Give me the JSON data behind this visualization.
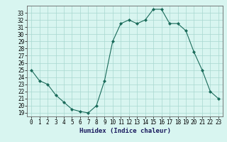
{
  "x": [
    0,
    1,
    2,
    3,
    4,
    5,
    6,
    7,
    8,
    9,
    10,
    11,
    12,
    13,
    14,
    15,
    16,
    17,
    18,
    19,
    20,
    21,
    22,
    23
  ],
  "y": [
    25.0,
    23.5,
    23.0,
    21.5,
    20.5,
    19.5,
    19.2,
    19.0,
    20.0,
    23.5,
    29.0,
    31.5,
    32.0,
    31.5,
    32.0,
    33.5,
    33.5,
    31.5,
    31.5,
    30.5,
    27.5,
    25.0,
    22.0,
    21.0
  ],
  "line_color": "#1a6b5a",
  "marker": "D",
  "marker_size": 2,
  "bg_color": "#d8f5f0",
  "grid_color": "#a8d8d0",
  "xlabel": "Humidex (Indice chaleur)",
  "ylabel_ticks": [
    19,
    20,
    21,
    22,
    23,
    24,
    25,
    26,
    27,
    28,
    29,
    30,
    31,
    32,
    33
  ],
  "xlim": [
    -0.5,
    23.5
  ],
  "ylim": [
    18.5,
    34.0
  ],
  "tick_fontsize": 5.5,
  "xlabel_fontsize": 6.5
}
